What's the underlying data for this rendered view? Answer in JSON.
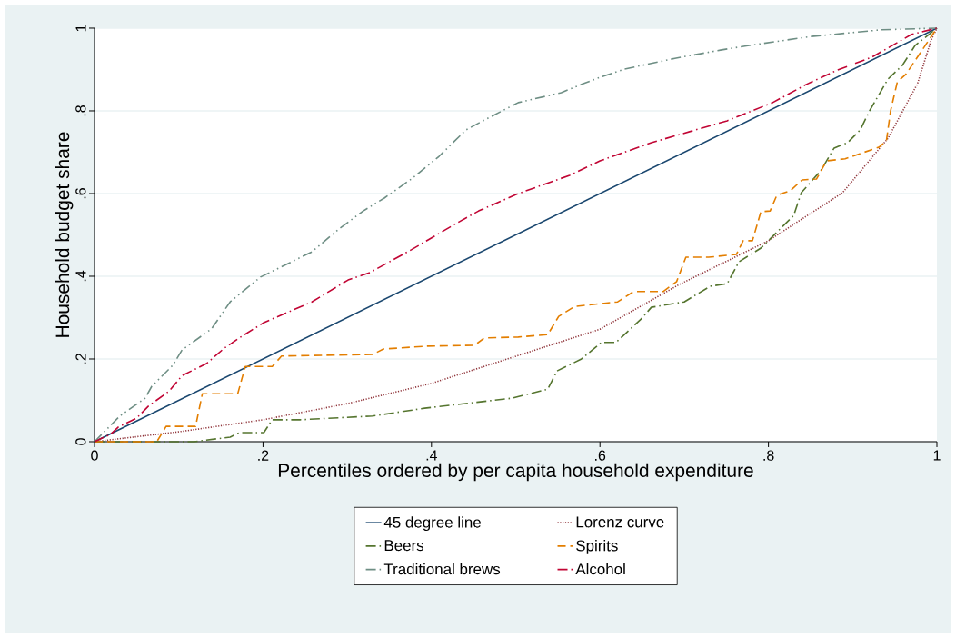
{
  "chart_data": {
    "type": "line",
    "xlabel": "Percentiles ordered by per capita household expenditure",
    "ylabel": "Household budget share",
    "xlim": [
      0,
      1
    ],
    "ylim": [
      0,
      1
    ],
    "xticks": [
      0,
      {
        "value": 0.2,
        "label": ".2"
      },
      {
        "value": 0.4,
        "label": ".4"
      },
      {
        "value": 0.6,
        "label": ".6"
      },
      {
        "value": 0.8,
        "label": ".8"
      },
      1
    ],
    "yticks": [
      0,
      {
        "value": 0.2,
        "label": ".2"
      },
      {
        "value": 0.4,
        "label": ".4"
      },
      {
        "value": 0.6,
        "label": ".6"
      },
      {
        "value": 0.8,
        "label": ".8"
      },
      1
    ],
    "grid": "y",
    "legend": "bottom",
    "series": [
      {
        "name": "45 degree line",
        "color": "#1a476f",
        "line_style": "solid",
        "x": [
          0,
          1
        ],
        "values": [
          0,
          1
        ]
      },
      {
        "name": "Lorenz curve",
        "color": "#90353b",
        "line_style": "dotted",
        "x": [
          0,
          0.104,
          0.2,
          0.3,
          0.4,
          0.49,
          0.6,
          0.694,
          0.8,
          0.888,
          0.942,
          0.977,
          0.993,
          1
        ],
        "values": [
          0,
          0.025,
          0.053,
          0.092,
          0.141,
          0.2,
          0.272,
          0.38,
          0.486,
          0.602,
          0.734,
          0.866,
          0.97,
          1
        ]
      },
      {
        "name": "Beers",
        "color": "#55752f",
        "line_style": "dashdot",
        "x": [
          0,
          0.118,
          0.161,
          0.172,
          0.201,
          0.211,
          0.244,
          0.33,
          0.392,
          0.495,
          0.538,
          0.549,
          0.578,
          0.602,
          0.619,
          0.65,
          0.661,
          0.7,
          0.731,
          0.751,
          0.765,
          0.791,
          0.83,
          0.839,
          0.862,
          0.878,
          0.894,
          0.909,
          0.92,
          0.942,
          0.959,
          0.974,
          1
        ],
        "values": [
          0,
          0,
          0.011,
          0.022,
          0.022,
          0.053,
          0.053,
          0.062,
          0.081,
          0.105,
          0.127,
          0.171,
          0.2,
          0.24,
          0.24,
          0.299,
          0.325,
          0.338,
          0.376,
          0.382,
          0.435,
          0.468,
          0.547,
          0.602,
          0.655,
          0.71,
          0.723,
          0.754,
          0.8,
          0.877,
          0.91,
          0.958,
          1
        ]
      },
      {
        "name": "Spirits",
        "color": "#e37e00",
        "line_style": "dashed",
        "x": [
          0,
          0.074,
          0.085,
          0.12,
          0.128,
          0.17,
          0.179,
          0.211,
          0.222,
          0.33,
          0.343,
          0.395,
          0.451,
          0.463,
          0.503,
          0.538,
          0.551,
          0.57,
          0.621,
          0.64,
          0.675,
          0.691,
          0.702,
          0.729,
          0.762,
          0.77,
          0.781,
          0.791,
          0.802,
          0.81,
          0.826,
          0.84,
          0.857,
          0.869,
          0.891,
          0.931,
          0.94,
          0.945,
          0.953,
          0.963,
          1
        ],
        "values": [
          0,
          0,
          0.037,
          0.037,
          0.116,
          0.116,
          0.182,
          0.182,
          0.207,
          0.211,
          0.224,
          0.231,
          0.233,
          0.251,
          0.253,
          0.259,
          0.303,
          0.327,
          0.338,
          0.363,
          0.363,
          0.387,
          0.446,
          0.446,
          0.453,
          0.486,
          0.486,
          0.556,
          0.558,
          0.596,
          0.607,
          0.633,
          0.635,
          0.679,
          0.684,
          0.712,
          0.727,
          0.8,
          0.87,
          0.888,
          1
        ]
      },
      {
        "name": "Traditional brews",
        "color": "#6e8e84",
        "line_style": "dashdotdot",
        "x": [
          0,
          0.03,
          0.06,
          0.068,
          0.093,
          0.104,
          0.139,
          0.161,
          0.197,
          0.258,
          0.29,
          0.319,
          0.344,
          0.376,
          0.409,
          0.441,
          0.463,
          0.503,
          0.554,
          0.578,
          0.6,
          0.629,
          0.689,
          0.743,
          0.783,
          0.851,
          0.934,
          1
        ],
        "values": [
          0,
          0.062,
          0.105,
          0.134,
          0.185,
          0.222,
          0.273,
          0.338,
          0.398,
          0.459,
          0.514,
          0.558,
          0.589,
          0.635,
          0.69,
          0.754,
          0.778,
          0.82,
          0.844,
          0.864,
          0.881,
          0.901,
          0.927,
          0.947,
          0.96,
          0.98,
          0.996,
          1
        ]
      },
      {
        "name": "Alcohol",
        "color": "#c10534",
        "line_style": "dashdot",
        "x": [
          0,
          0.019,
          0.028,
          0.05,
          0.064,
          0.089,
          0.104,
          0.133,
          0.154,
          0.172,
          0.201,
          0.258,
          0.301,
          0.327,
          0.376,
          0.427,
          0.456,
          0.503,
          0.564,
          0.6,
          0.661,
          0.751,
          0.805,
          0.845,
          0.88,
          0.923,
          0.97,
          1
        ],
        "values": [
          0,
          0.018,
          0.035,
          0.057,
          0.086,
          0.123,
          0.16,
          0.189,
          0.226,
          0.251,
          0.288,
          0.338,
          0.391,
          0.409,
          0.464,
          0.525,
          0.558,
          0.6,
          0.644,
          0.679,
          0.723,
          0.776,
          0.82,
          0.864,
          0.897,
          0.93,
          0.985,
          1
        ]
      }
    ]
  }
}
